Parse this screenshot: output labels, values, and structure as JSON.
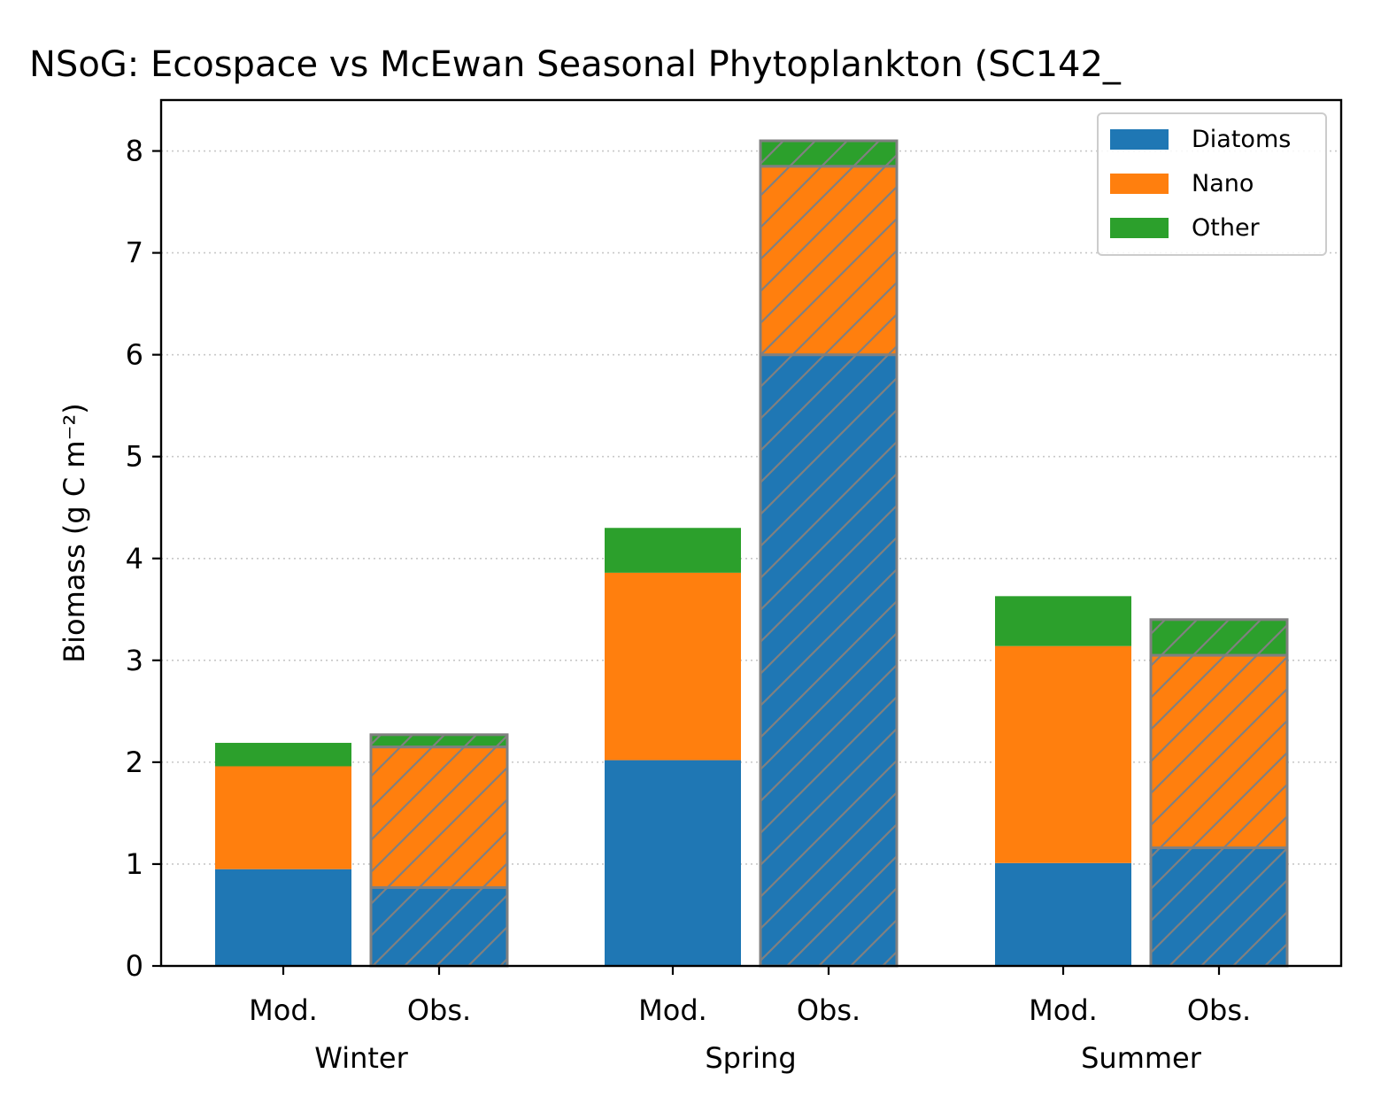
{
  "chart_data": {
    "type": "bar",
    "stacked": true,
    "title": "NSoG: Ecospace vs McEwan Seasonal Phytoplankton (SC142_",
    "xlabel": "",
    "ylabel": "Biomass (g C m⁻²)",
    "ylim": [
      0,
      8.5
    ],
    "yticks": [
      0,
      1,
      2,
      3,
      4,
      5,
      6,
      7,
      8
    ],
    "grid": "y-dotted",
    "legend_position": "top-right",
    "groups": [
      "Winter",
      "Spring",
      "Summer"
    ],
    "bar_labels": [
      "Mod.",
      "Obs."
    ],
    "observed_style": "hatched with grey edge",
    "series": [
      {
        "name": "Diatoms",
        "color": "#1f77b4",
        "mod": [
          0.95,
          2.02,
          1.01
        ],
        "obs": [
          0.77,
          6.0,
          1.16
        ]
      },
      {
        "name": "Nano",
        "color": "#ff7f0e",
        "mod": [
          1.01,
          1.84,
          2.13
        ],
        "obs": [
          1.38,
          1.85,
          1.89
        ]
      },
      {
        "name": "Other",
        "color": "#2ca02c",
        "mod": [
          0.23,
          0.44,
          0.49
        ],
        "obs": [
          0.12,
          0.25,
          0.35
        ]
      }
    ]
  }
}
